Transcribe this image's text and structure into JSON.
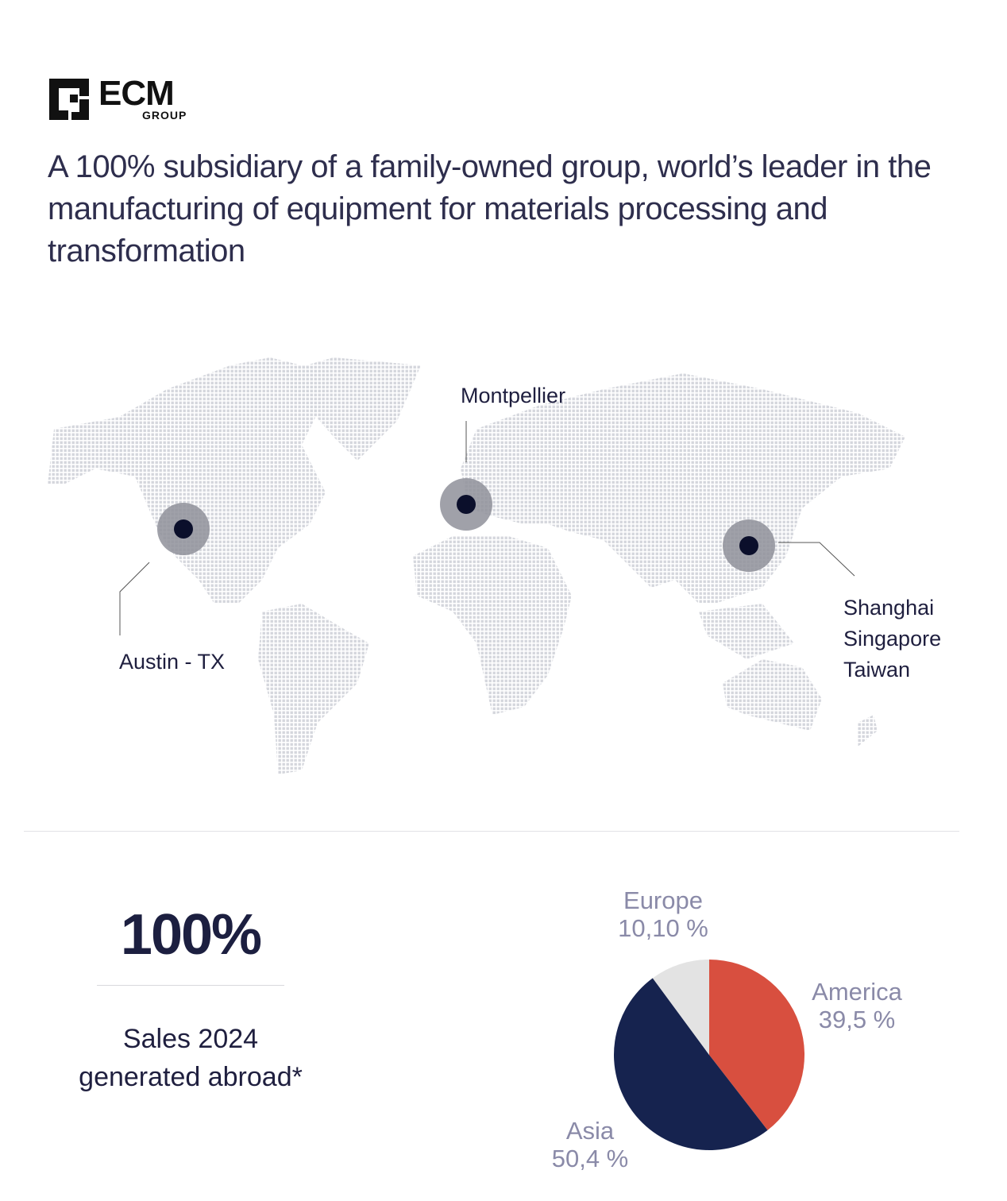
{
  "logo": {
    "text": "ECM",
    "subtext": "GROUP"
  },
  "headline": "A 100% subsidiary of a family-owned group,  world’s leader in the manufacturing of equipment for materials processing and transformation",
  "map": {
    "locations": [
      {
        "name": "Austin - TX"
      },
      {
        "name": "Montpellier"
      },
      {
        "name": "Shanghai\nSingapore\nTaiwan",
        "lines": [
          "Shanghai",
          "Singapore",
          "Taiwan"
        ]
      }
    ],
    "marker_color": "#0b0f2b",
    "halo_color": "#8f909a",
    "land_color": "#d6d8de"
  },
  "stats": {
    "value": "100%",
    "caption_line1": "Sales 2024",
    "caption_line2": "generated abroad*"
  },
  "chart_data": {
    "type": "pie",
    "categories": [
      "America",
      "Asia",
      "Europe"
    ],
    "values": [
      39.5,
      50.4,
      10.1
    ],
    "labels": [
      {
        "name": "America",
        "value": "39,5 %"
      },
      {
        "name": "Asia",
        "value": "50,4 %"
      },
      {
        "name": "Europe",
        "value": "10,10 %"
      }
    ],
    "colors": [
      "#d84f3f",
      "#16234f",
      "#e3e3e3"
    ],
    "start": "top",
    "direction": "clockwise"
  }
}
